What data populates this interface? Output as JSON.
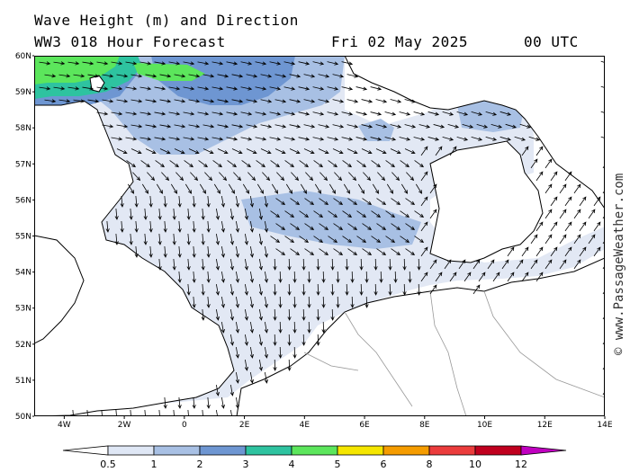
{
  "header": {
    "title": "Wave Height (m) and Direction",
    "subtitle": "WW3 018 Hour Forecast",
    "date": "Fri 02 May 2025",
    "time": "00 UTC"
  },
  "credit": "© www.PassageWeather.com",
  "map": {
    "lon_range": [
      -5,
      14
    ],
    "lat_range": [
      50,
      60
    ],
    "lon_ticks": [
      {
        "lon": -4,
        "label": "4W"
      },
      {
        "lon": -2,
        "label": "2W"
      },
      {
        "lon": 0,
        "label": "0"
      },
      {
        "lon": 2,
        "label": "2E"
      },
      {
        "lon": 4,
        "label": "4E"
      },
      {
        "lon": 6,
        "label": "6E"
      },
      {
        "lon": 8,
        "label": "8E"
      },
      {
        "lon": 10,
        "label": "10E"
      },
      {
        "lon": 12,
        "label": "12E"
      },
      {
        "lon": 14,
        "label": "14E"
      }
    ],
    "lat_ticks": [
      {
        "lat": 60,
        "label": "60N"
      },
      {
        "lat": 59,
        "label": "59N"
      },
      {
        "lat": 58,
        "label": "58N"
      },
      {
        "lat": 57,
        "label": "57N"
      },
      {
        "lat": 56,
        "label": "56N"
      },
      {
        "lat": 55,
        "label": "55N"
      },
      {
        "lat": 54,
        "label": "54N"
      },
      {
        "lat": 53,
        "label": "53N"
      },
      {
        "lat": 52,
        "label": "52N"
      },
      {
        "lat": 51,
        "label": "51N"
      },
      {
        "lat": 50,
        "label": "50N"
      }
    ]
  },
  "legend": {
    "labels": [
      "0.5",
      "1",
      "2",
      "3",
      "4",
      "5",
      "6",
      "8",
      "10",
      "12"
    ],
    "colors": [
      "#dfe7f5",
      "#a8c0e4",
      "#6e96d2",
      "#2ec3a0",
      "#5ce65c",
      "#f5e600",
      "#f59c00",
      "#eb3c3c",
      "#c0001e",
      "#c000c0"
    ]
  },
  "colors": {
    "sea": "#e2e8f4",
    "land": "#ffffff",
    "coast": "#000000",
    "border": "#999999"
  }
}
